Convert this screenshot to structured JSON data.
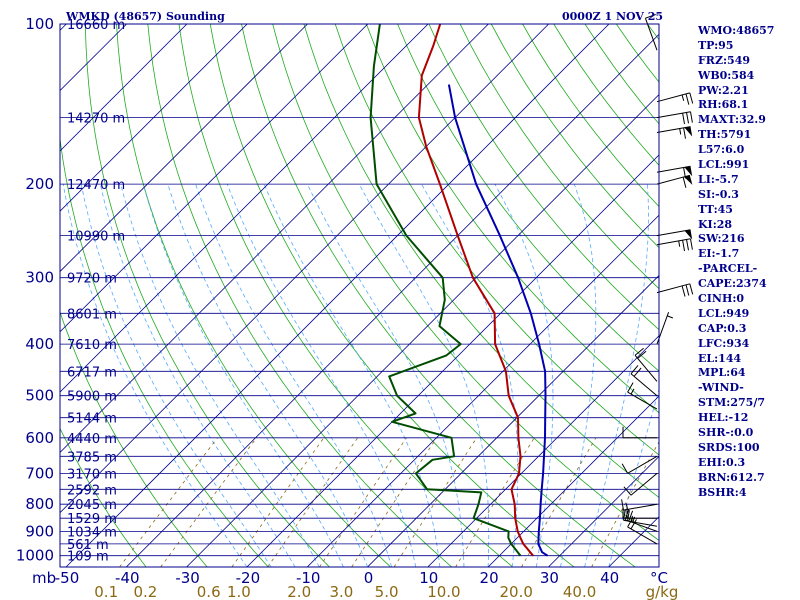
{
  "title": {
    "station": "WMKD (48657) Sounding",
    "time": "0000Z  1 NOV 25"
  },
  "colors": {
    "frame": "#00008b",
    "isotherm": "#00008b",
    "dry_adiabat": "#22aa22",
    "moist_adiabat": "#55aaff",
    "mixing_ratio": "#8b6914",
    "temperature": "#b00000",
    "dewpoint": "#004d00",
    "parcel": "#0000b0",
    "barb": "#000000"
  },
  "indices": [
    "WMO:48657",
    "TP:95",
    "FRZ:549",
    "WB0:584",
    "PW:2.21",
    "RH:68.1",
    "MAXT:32.9",
    "TH:5791",
    "L57:6.0",
    "LCL:991",
    "LI:-5.7",
    "SI:-0.3",
    "TT:45",
    "KI:28",
    "SW:216",
    "EI:-1.7",
    "-PARCEL-",
    "CAPE:2374",
    "CINH:0",
    "LCL:949",
    "CAP:0.3",
    "LFC:934",
    "EL:144",
    "MPL:64",
    "-WIND-",
    "STM:275/7",
    "HEL:-12",
    "SHR-:0.0",
    "SRDS:100",
    "EHI:0.3",
    "BRN:612.7",
    "BSHR:4"
  ],
  "chart_data": {
    "type": "skew-t",
    "title": "WMKD (48657) Sounding 0000Z 1 NOV 25",
    "xlabel": "°C",
    "ylabel": "mb",
    "temp_range": [
      -50,
      50
    ],
    "pressure_range": [
      1000,
      100
    ],
    "pressure_labels": [
      {
        "p": 100,
        "label": "100"
      },
      {
        "p": 200,
        "label": "200"
      },
      {
        "p": 300,
        "label": "300"
      },
      {
        "p": 400,
        "label": "400"
      },
      {
        "p": 500,
        "label": "500"
      },
      {
        "p": 600,
        "label": "600"
      },
      {
        "p": 700,
        "label": "700"
      },
      {
        "p": 800,
        "label": "800"
      },
      {
        "p": 900,
        "label": "900"
      },
      {
        "p": 1000,
        "label": "1000"
      }
    ],
    "axis_unit_label": "mb",
    "height_labels": [
      {
        "p": 100,
        "label": "16660 m"
      },
      {
        "p": 150,
        "label": "14270 m"
      },
      {
        "p": 200,
        "label": "12470 m"
      },
      {
        "p": 250,
        "label": "10990 m"
      },
      {
        "p": 300,
        "label": "9720 m"
      },
      {
        "p": 350,
        "label": "8601 m"
      },
      {
        "p": 400,
        "label": "7610 m"
      },
      {
        "p": 450,
        "label": "6717 m"
      },
      {
        "p": 500,
        "label": "5900 m"
      },
      {
        "p": 550,
        "label": "5144 m"
      },
      {
        "p": 600,
        "label": "4440 m"
      },
      {
        "p": 650,
        "label": "3785 m"
      },
      {
        "p": 700,
        "label": "3170 m"
      },
      {
        "p": 750,
        "label": "2592 m"
      },
      {
        "p": 800,
        "label": "2045 m"
      },
      {
        "p": 850,
        "label": "1529 m"
      },
      {
        "p": 900,
        "label": "1034 m"
      },
      {
        "p": 950,
        "label": "561 m"
      },
      {
        "p": 1000,
        "label": "109 m"
      }
    ],
    "temp_ticks": [
      -50,
      -40,
      -30,
      -20,
      -10,
      0,
      10,
      20,
      30,
      40
    ],
    "temp_unit_label": "°C",
    "mixing_ratio_labels": [
      {
        "t": -43.5,
        "label": "0.1"
      },
      {
        "t": -37,
        "label": "0.2"
      },
      {
        "t": -26.5,
        "label": "0.6"
      },
      {
        "t": -21.5,
        "label": "1.0"
      },
      {
        "t": -11.5,
        "label": "2.0"
      },
      {
        "t": -4.5,
        "label": "3.0"
      },
      {
        "t": 3,
        "label": "5.0"
      },
      {
        "t": 12.5,
        "label": "10.0"
      },
      {
        "t": 24.5,
        "label": "20.0"
      },
      {
        "t": 35,
        "label": "40.0"
      }
    ],
    "mixing_ratio_unit": "g/kg",
    "mixing_ratio_values": [
      0.1,
      0.2,
      0.6,
      1.0,
      2.0,
      3.0,
      5.0,
      10.0,
      20.0,
      40.0
    ],
    "series": [
      {
        "name": "Temperature",
        "values": [
          {
            "p": 1000,
            "t": 25.6
          },
          {
            "p": 950,
            "t": 22.0
          },
          {
            "p": 925,
            "t": 20.5
          },
          {
            "p": 900,
            "t": 19.0
          },
          {
            "p": 850,
            "t": 16.4
          },
          {
            "p": 800,
            "t": 14.0
          },
          {
            "p": 750,
            "t": 11.0
          },
          {
            "p": 700,
            "t": 9.6
          },
          {
            "p": 650,
            "t": 7.0
          },
          {
            "p": 600,
            "t": 3.6
          },
          {
            "p": 550,
            "t": 0.2
          },
          {
            "p": 500,
            "t": -5.0
          },
          {
            "p": 450,
            "t": -9.5
          },
          {
            "p": 400,
            "t": -15.8
          },
          {
            "p": 350,
            "t": -21.0
          },
          {
            "p": 300,
            "t": -30.5
          },
          {
            "p": 250,
            "t": -40.0
          },
          {
            "p": 200,
            "t": -51.5
          },
          {
            "p": 170,
            "t": -60.0
          },
          {
            "p": 150,
            "t": -66.0
          },
          {
            "p": 125,
            "t": -72.5
          },
          {
            "p": 110,
            "t": -75.5
          },
          {
            "p": 100,
            "t": -78.0
          }
        ]
      },
      {
        "name": "Dewpoint",
        "values": [
          {
            "p": 1000,
            "t": 23.5
          },
          {
            "p": 950,
            "t": 20.0
          },
          {
            "p": 925,
            "t": 18.5
          },
          {
            "p": 900,
            "t": 17.5
          },
          {
            "p": 850,
            "t": 9.5
          },
          {
            "p": 800,
            "t": 8.0
          },
          {
            "p": 760,
            "t": 6.5
          },
          {
            "p": 750,
            "t": -3.0
          },
          {
            "p": 700,
            "t": -7.5
          },
          {
            "p": 660,
            "t": -7.0
          },
          {
            "p": 650,
            "t": -4.0
          },
          {
            "p": 600,
            "t": -7.5
          },
          {
            "p": 560,
            "t": -20.0
          },
          {
            "p": 540,
            "t": -17.5
          },
          {
            "p": 500,
            "t": -23.5
          },
          {
            "p": 460,
            "t": -28.0
          },
          {
            "p": 420,
            "t": -22.0
          },
          {
            "p": 400,
            "t": -21.5
          },
          {
            "p": 370,
            "t": -28.0
          },
          {
            "p": 330,
            "t": -31.5
          },
          {
            "p": 300,
            "t": -35.5
          },
          {
            "p": 250,
            "t": -48.5
          },
          {
            "p": 200,
            "t": -62.0
          },
          {
            "p": 150,
            "t": -74.0
          },
          {
            "p": 120,
            "t": -82.0
          },
          {
            "p": 100,
            "t": -88.0
          }
        ]
      },
      {
        "name": "Parcel",
        "values": [
          {
            "p": 1000,
            "t": 28.0
          },
          {
            "p": 985,
            "t": 26.5
          },
          {
            "p": 950,
            "t": 24.5
          },
          {
            "p": 900,
            "t": 22.5
          },
          {
            "p": 850,
            "t": 20.5
          },
          {
            "p": 800,
            "t": 18.3
          },
          {
            "p": 750,
            "t": 16.0
          },
          {
            "p": 700,
            "t": 13.6
          },
          {
            "p": 650,
            "t": 10.9
          },
          {
            "p": 600,
            "t": 8.0
          },
          {
            "p": 550,
            "t": 4.7
          },
          {
            "p": 500,
            "t": 1.1
          },
          {
            "p": 450,
            "t": -3.0
          },
          {
            "p": 400,
            "t": -8.5
          },
          {
            "p": 350,
            "t": -15.0
          },
          {
            "p": 300,
            "t": -23.0
          },
          {
            "p": 250,
            "t": -33.0
          },
          {
            "p": 200,
            "t": -45.5
          },
          {
            "p": 150,
            "t": -60.0
          },
          {
            "p": 130,
            "t": -66.5
          }
        ]
      }
    ],
    "wind_barbs": [
      {
        "p": 112,
        "dir": 340,
        "kt": 10
      },
      {
        "p": 140,
        "dir": 75,
        "kt": 25
      },
      {
        "p": 150,
        "dir": 80,
        "kt": 30
      },
      {
        "p": 160,
        "dir": 80,
        "kt": 65
      },
      {
        "p": 190,
        "dir": 80,
        "kt": 60
      },
      {
        "p": 200,
        "dir": 75,
        "kt": 60
      },
      {
        "p": 250,
        "dir": 80,
        "kt": 50
      },
      {
        "p": 260,
        "dir": 80,
        "kt": 35
      },
      {
        "p": 320,
        "dir": 75,
        "kt": 30
      },
      {
        "p": 400,
        "dir": 20,
        "kt": 5
      },
      {
        "p": 470,
        "dir": 320,
        "kt": 20
      },
      {
        "p": 500,
        "dir": 310,
        "kt": 20
      },
      {
        "p": 530,
        "dir": 300,
        "kt": 15
      },
      {
        "p": 600,
        "dir": 270,
        "kt": 10
      },
      {
        "p": 650,
        "dir": 240,
        "kt": 10
      },
      {
        "p": 700,
        "dir": 230,
        "kt": 10
      },
      {
        "p": 800,
        "dir": 260,
        "kt": 15
      },
      {
        "p": 850,
        "dir": 270,
        "kt": 20
      },
      {
        "p": 880,
        "dir": 280,
        "kt": 25
      },
      {
        "p": 900,
        "dir": 290,
        "kt": 25
      },
      {
        "p": 950,
        "dir": 300,
        "kt": 20
      }
    ]
  }
}
